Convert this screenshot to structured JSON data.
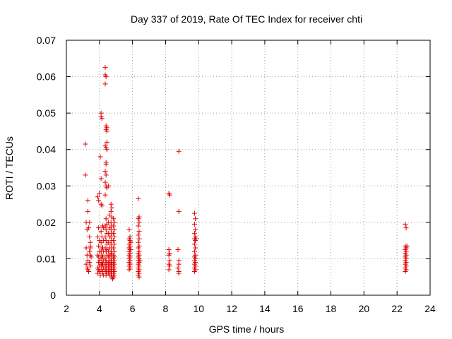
{
  "chart_data": {
    "type": "scatter",
    "title": "Day 337 of 2019, Rate Of TEC Index for receiver chti",
    "xlabel": "GPS time / hours",
    "ylabel": "ROTI / TECUs",
    "xlim": [
      2,
      24
    ],
    "ylim": [
      0,
      0.07
    ],
    "x_ticks": [
      2,
      4,
      6,
      8,
      10,
      12,
      14,
      16,
      18,
      20,
      22,
      24
    ],
    "y_ticks": [
      0,
      0.01,
      0.02,
      0.03,
      0.04,
      0.05,
      0.06,
      0.07
    ],
    "x_tick_labels": [
      "2",
      "4",
      "6",
      "8",
      "10",
      "12",
      "14",
      "16",
      "18",
      "20",
      "22",
      "24"
    ],
    "y_tick_labels": [
      "0",
      "0.01",
      "0.02",
      "0.03",
      "0.04",
      "0.05",
      "0.06",
      "0.07"
    ],
    "grid": true,
    "marker": "+",
    "color": "#e00000",
    "series": [
      {
        "name": "ROTI",
        "points": [
          [
            3.15,
            0.0415
          ],
          [
            3.15,
            0.033
          ],
          [
            3.2,
            0.02
          ],
          [
            3.3,
            0.026
          ],
          [
            3.3,
            0.023
          ],
          [
            3.25,
            0.018
          ],
          [
            3.2,
            0.013
          ],
          [
            3.25,
            0.011
          ],
          [
            3.3,
            0.0095
          ],
          [
            3.2,
            0.0085
          ],
          [
            3.25,
            0.0075
          ],
          [
            3.3,
            0.007
          ],
          [
            3.35,
            0.0065
          ],
          [
            3.4,
            0.016
          ],
          [
            3.45,
            0.0145
          ],
          [
            3.45,
            0.013
          ],
          [
            3.4,
            0.012
          ],
          [
            3.45,
            0.011
          ],
          [
            3.5,
            0.0105
          ],
          [
            3.4,
            0.009
          ],
          [
            3.45,
            0.008
          ],
          [
            3.35,
            0.0185
          ],
          [
            3.4,
            0.02
          ],
          [
            3.45,
            0.0135
          ],
          [
            3.9,
            0.027
          ],
          [
            3.95,
            0.026
          ],
          [
            4.0,
            0.028
          ],
          [
            3.95,
            0.0185
          ],
          [
            3.9,
            0.016
          ],
          [
            4.0,
            0.015
          ],
          [
            3.95,
            0.0135
          ],
          [
            4.0,
            0.012
          ],
          [
            3.9,
            0.011
          ],
          [
            3.95,
            0.0105
          ],
          [
            4.0,
            0.0095
          ],
          [
            3.95,
            0.009
          ],
          [
            4.0,
            0.008
          ],
          [
            3.9,
            0.0075
          ],
          [
            3.95,
            0.007
          ],
          [
            4.0,
            0.0065
          ],
          [
            3.9,
            0.006
          ],
          [
            4.05,
            0.0055
          ],
          [
            4.05,
            0.038
          ],
          [
            4.1,
            0.05
          ],
          [
            4.1,
            0.049
          ],
          [
            4.15,
            0.0485
          ],
          [
            4.1,
            0.032
          ],
          [
            4.1,
            0.025
          ],
          [
            4.15,
            0.0245
          ],
          [
            4.1,
            0.0175
          ],
          [
            4.15,
            0.016
          ],
          [
            4.1,
            0.0145
          ],
          [
            4.15,
            0.013
          ],
          [
            4.1,
            0.012
          ],
          [
            4.15,
            0.011
          ],
          [
            4.1,
            0.01
          ],
          [
            4.15,
            0.009
          ],
          [
            4.1,
            0.0085
          ],
          [
            4.15,
            0.008
          ],
          [
            4.1,
            0.007
          ],
          [
            4.2,
            0.0065
          ],
          [
            4.2,
            0.006
          ],
          [
            4.25,
            0.0055
          ],
          [
            4.25,
            0.0185
          ],
          [
            4.2,
            0.019
          ],
          [
            4.25,
            0.015
          ],
          [
            4.2,
            0.013
          ],
          [
            4.25,
            0.012
          ],
          [
            4.2,
            0.0105
          ],
          [
            4.25,
            0.0095
          ],
          [
            4.2,
            0.0085
          ],
          [
            4.25,
            0.0075
          ],
          [
            4.35,
            0.0625
          ],
          [
            4.35,
            0.0605
          ],
          [
            4.4,
            0.06
          ],
          [
            4.35,
            0.058
          ],
          [
            4.4,
            0.0465
          ],
          [
            4.45,
            0.046
          ],
          [
            4.4,
            0.0455
          ],
          [
            4.45,
            0.045
          ],
          [
            4.35,
            0.041
          ],
          [
            4.4,
            0.0405
          ],
          [
            4.45,
            0.04
          ],
          [
            4.45,
            0.042
          ],
          [
            4.4,
            0.0365
          ],
          [
            4.4,
            0.036
          ],
          [
            4.35,
            0.034
          ],
          [
            4.4,
            0.033
          ],
          [
            4.35,
            0.031
          ],
          [
            4.4,
            0.03
          ],
          [
            4.45,
            0.0295
          ],
          [
            4.35,
            0.0275
          ],
          [
            4.4,
            0.021
          ],
          [
            4.45,
            0.0195
          ],
          [
            4.35,
            0.019
          ],
          [
            4.4,
            0.018
          ],
          [
            4.45,
            0.017
          ],
          [
            4.35,
            0.016
          ],
          [
            4.4,
            0.015
          ],
          [
            4.45,
            0.014
          ],
          [
            4.35,
            0.013
          ],
          [
            4.4,
            0.012
          ],
          [
            4.45,
            0.011
          ],
          [
            4.35,
            0.01
          ],
          [
            4.4,
            0.0095
          ],
          [
            4.45,
            0.009
          ],
          [
            4.35,
            0.0085
          ],
          [
            4.4,
            0.008
          ],
          [
            4.45,
            0.0075
          ],
          [
            4.35,
            0.007
          ],
          [
            4.4,
            0.0065
          ],
          [
            4.45,
            0.006
          ],
          [
            4.4,
            0.0055
          ],
          [
            4.45,
            0.0125
          ],
          [
            4.55,
            0.03
          ],
          [
            4.6,
            0.022
          ],
          [
            4.55,
            0.02
          ],
          [
            4.6,
            0.0185
          ],
          [
            4.55,
            0.017
          ],
          [
            4.6,
            0.016
          ],
          [
            4.55,
            0.0145
          ],
          [
            4.6,
            0.013
          ],
          [
            4.55,
            0.012
          ],
          [
            4.6,
            0.011
          ],
          [
            4.55,
            0.0105
          ],
          [
            4.6,
            0.0095
          ],
          [
            4.55,
            0.009
          ],
          [
            4.6,
            0.0085
          ],
          [
            4.55,
            0.008
          ],
          [
            4.6,
            0.0075
          ],
          [
            4.55,
            0.007
          ],
          [
            4.6,
            0.0065
          ],
          [
            4.55,
            0.006
          ],
          [
            4.6,
            0.0055
          ],
          [
            4.7,
            0.025
          ],
          [
            4.75,
            0.024
          ],
          [
            4.7,
            0.023
          ],
          [
            4.75,
            0.0215
          ],
          [
            4.7,
            0.02
          ],
          [
            4.75,
            0.019
          ],
          [
            4.7,
            0.018
          ],
          [
            4.75,
            0.017
          ],
          [
            4.7,
            0.016
          ],
          [
            4.75,
            0.015
          ],
          [
            4.7,
            0.014
          ],
          [
            4.75,
            0.013
          ],
          [
            4.7,
            0.012
          ],
          [
            4.75,
            0.0115
          ],
          [
            4.7,
            0.011
          ],
          [
            4.75,
            0.01
          ],
          [
            4.7,
            0.0095
          ],
          [
            4.75,
            0.009
          ],
          [
            4.7,
            0.0085
          ],
          [
            4.75,
            0.008
          ],
          [
            4.7,
            0.0075
          ],
          [
            4.75,
            0.007
          ],
          [
            4.7,
            0.0065
          ],
          [
            4.75,
            0.006
          ],
          [
            4.7,
            0.0055
          ],
          [
            4.75,
            0.005
          ],
          [
            4.8,
            0.0045
          ],
          [
            4.85,
            0.021
          ],
          [
            4.9,
            0.02
          ],
          [
            4.85,
            0.019
          ],
          [
            4.9,
            0.018
          ],
          [
            4.85,
            0.017
          ],
          [
            4.9,
            0.016
          ],
          [
            4.85,
            0.015
          ],
          [
            4.9,
            0.014
          ],
          [
            4.85,
            0.013
          ],
          [
            4.9,
            0.012
          ],
          [
            4.85,
            0.011
          ],
          [
            4.9,
            0.0105
          ],
          [
            4.85,
            0.01
          ],
          [
            4.9,
            0.0095
          ],
          [
            4.85,
            0.009
          ],
          [
            4.9,
            0.0085
          ],
          [
            4.85,
            0.008
          ],
          [
            4.9,
            0.0075
          ],
          [
            4.85,
            0.007
          ],
          [
            4.9,
            0.0065
          ],
          [
            4.85,
            0.006
          ],
          [
            4.9,
            0.0055
          ],
          [
            4.85,
            0.005
          ],
          [
            5.8,
            0.018
          ],
          [
            5.85,
            0.016
          ],
          [
            5.8,
            0.0155
          ],
          [
            5.85,
            0.015
          ],
          [
            5.8,
            0.014
          ],
          [
            5.85,
            0.0135
          ],
          [
            5.8,
            0.013
          ],
          [
            5.85,
            0.0125
          ],
          [
            5.8,
            0.012
          ],
          [
            5.85,
            0.0115
          ],
          [
            5.8,
            0.011
          ],
          [
            5.85,
            0.0105
          ],
          [
            5.8,
            0.01
          ],
          [
            5.85,
            0.0095
          ],
          [
            5.8,
            0.009
          ],
          [
            5.85,
            0.0085
          ],
          [
            5.8,
            0.008
          ],
          [
            5.85,
            0.0075
          ],
          [
            5.8,
            0.007
          ],
          [
            5.9,
            0.0145
          ],
          [
            5.9,
            0.0125
          ],
          [
            6.35,
            0.0265
          ],
          [
            6.4,
            0.0215
          ],
          [
            6.35,
            0.021
          ],
          [
            6.4,
            0.02
          ],
          [
            6.35,
            0.019
          ],
          [
            6.4,
            0.0175
          ],
          [
            6.35,
            0.0165
          ],
          [
            6.4,
            0.0155
          ],
          [
            6.35,
            0.0145
          ],
          [
            6.4,
            0.0135
          ],
          [
            6.35,
            0.013
          ],
          [
            6.4,
            0.012
          ],
          [
            6.35,
            0.0115
          ],
          [
            6.4,
            0.011
          ],
          [
            6.35,
            0.0105
          ],
          [
            6.4,
            0.01
          ],
          [
            6.35,
            0.0095
          ],
          [
            6.4,
            0.009
          ],
          [
            6.35,
            0.0085
          ],
          [
            6.4,
            0.008
          ],
          [
            6.35,
            0.0075
          ],
          [
            6.4,
            0.007
          ],
          [
            6.35,
            0.0065
          ],
          [
            6.4,
            0.006
          ],
          [
            6.35,
            0.0055
          ],
          [
            6.4,
            0.005
          ],
          [
            6.45,
            0.0095
          ],
          [
            8.2,
            0.028
          ],
          [
            8.25,
            0.0275
          ],
          [
            8.2,
            0.0125
          ],
          [
            8.25,
            0.0115
          ],
          [
            8.2,
            0.011
          ],
          [
            8.25,
            0.0095
          ],
          [
            8.2,
            0.0085
          ],
          [
            8.25,
            0.008
          ],
          [
            8.2,
            0.007
          ],
          [
            8.8,
            0.0395
          ],
          [
            8.8,
            0.023
          ],
          [
            8.75,
            0.0125
          ],
          [
            8.8,
            0.0095
          ],
          [
            8.8,
            0.0085
          ],
          [
            8.75,
            0.0075
          ],
          [
            8.8,
            0.0065
          ],
          [
            8.8,
            0.006
          ],
          [
            9.75,
            0.0225
          ],
          [
            9.8,
            0.021
          ],
          [
            9.75,
            0.0195
          ],
          [
            9.8,
            0.018
          ],
          [
            9.75,
            0.017
          ],
          [
            9.8,
            0.016
          ],
          [
            9.75,
            0.0155
          ],
          [
            9.8,
            0.015
          ],
          [
            9.75,
            0.014
          ],
          [
            9.8,
            0.013
          ],
          [
            9.75,
            0.012
          ],
          [
            9.8,
            0.011
          ],
          [
            9.75,
            0.0105
          ],
          [
            9.8,
            0.01
          ],
          [
            9.75,
            0.0095
          ],
          [
            9.8,
            0.009
          ],
          [
            9.75,
            0.0085
          ],
          [
            9.8,
            0.008
          ],
          [
            9.75,
            0.0075
          ],
          [
            9.8,
            0.007
          ],
          [
            9.75,
            0.0065
          ],
          [
            9.85,
            0.0155
          ],
          [
            22.5,
            0.0195
          ],
          [
            22.55,
            0.0185
          ],
          [
            22.5,
            0.0135
          ],
          [
            22.55,
            0.013
          ],
          [
            22.5,
            0.0125
          ],
          [
            22.55,
            0.012
          ],
          [
            22.5,
            0.0115
          ],
          [
            22.55,
            0.011
          ],
          [
            22.5,
            0.0105
          ],
          [
            22.55,
            0.01
          ],
          [
            22.5,
            0.0095
          ],
          [
            22.55,
            0.009
          ],
          [
            22.5,
            0.0085
          ],
          [
            22.55,
            0.008
          ],
          [
            22.5,
            0.0075
          ],
          [
            22.55,
            0.007
          ],
          [
            22.5,
            0.0065
          ],
          [
            22.6,
            0.0135
          ]
        ]
      }
    ]
  }
}
